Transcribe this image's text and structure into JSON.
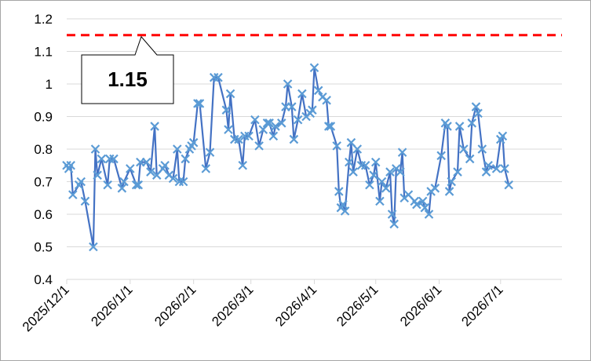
{
  "chart_data": {
    "type": "line",
    "title": "",
    "xlabel": "",
    "ylabel": "",
    "ylim": [
      0.4,
      1.2
    ],
    "yticks": [
      "0.4",
      "0.5",
      "0.6",
      "0.7",
      "0.8",
      "0.9",
      "1",
      "1.1",
      "1.2"
    ],
    "xlim": [
      "2025-12-01",
      "2026-07-31"
    ],
    "xticks": [
      "2025/12/1",
      "2026/1/1",
      "2026/2/1",
      "2026/3/1",
      "2026/4/1",
      "2026/5/1",
      "2026/6/1",
      "2026/7/1"
    ],
    "grid": "horizontal",
    "series": [
      {
        "color": "#4472c4",
        "marker": "x",
        "points": [
          [
            "2025-12-01",
            0.75
          ],
          [
            "2025-12-02",
            0.74
          ],
          [
            "2025-12-03",
            0.75
          ],
          [
            "2025-12-04",
            0.66
          ],
          [
            "2025-12-07",
            0.69
          ],
          [
            "2025-12-08",
            0.7
          ],
          [
            "2025-12-10",
            0.64
          ],
          [
            "2025-12-14",
            0.5
          ],
          [
            "2025-12-15",
            0.8
          ],
          [
            "2025-12-16",
            0.72
          ],
          [
            "2025-12-18",
            0.77
          ],
          [
            "2025-12-21",
            0.69
          ],
          [
            "2025-12-22",
            0.77
          ],
          [
            "2025-12-24",
            0.77
          ],
          [
            "2025-12-28",
            0.68
          ],
          [
            "2025-12-29",
            0.7
          ],
          [
            "2026-01-01",
            0.74
          ],
          [
            "2026-01-04",
            0.69
          ],
          [
            "2026-01-05",
            0.69
          ],
          [
            "2026-01-06",
            0.76
          ],
          [
            "2026-01-09",
            0.76
          ],
          [
            "2026-01-11",
            0.73
          ],
          [
            "2026-01-13",
            0.87
          ],
          [
            "2026-01-14",
            0.72
          ],
          [
            "2026-01-17",
            0.74
          ],
          [
            "2026-01-18",
            0.75
          ],
          [
            "2026-01-20",
            0.72
          ],
          [
            "2026-01-22",
            0.71
          ],
          [
            "2026-01-24",
            0.8
          ],
          [
            "2026-01-25",
            0.7
          ],
          [
            "2026-01-27",
            0.7
          ],
          [
            "2026-01-28",
            0.77
          ],
          [
            "2026-01-30",
            0.8
          ],
          [
            "2026-01-31",
            0.81
          ],
          [
            "2026-02-01",
            0.82
          ],
          [
            "2026-02-03",
            0.94
          ],
          [
            "2026-02-04",
            0.94
          ],
          [
            "2026-02-07",
            0.74
          ],
          [
            "2026-02-09",
            0.79
          ],
          [
            "2026-02-11",
            1.02
          ],
          [
            "2026-02-13",
            1.02
          ],
          [
            "2026-02-17",
            0.92
          ],
          [
            "2026-02-18",
            0.86
          ],
          [
            "2026-02-19",
            0.97
          ],
          [
            "2026-02-21",
            0.83
          ],
          [
            "2026-02-23",
            0.83
          ],
          [
            "2026-02-25",
            0.75
          ],
          [
            "2026-02-26",
            0.84
          ],
          [
            "2026-02-28",
            0.84
          ],
          [
            "2026-03-03",
            0.89
          ],
          [
            "2026-03-05",
            0.81
          ],
          [
            "2026-03-07",
            0.86
          ],
          [
            "2026-03-09",
            0.88
          ],
          [
            "2026-03-10",
            0.88
          ],
          [
            "2026-03-12",
            0.84
          ],
          [
            "2026-03-13",
            0.87
          ],
          [
            "2026-03-16",
            0.88
          ],
          [
            "2026-03-18",
            0.93
          ],
          [
            "2026-03-19",
            1.0
          ],
          [
            "2026-03-21",
            0.93
          ],
          [
            "2026-03-22",
            0.83
          ],
          [
            "2026-03-24",
            0.89
          ],
          [
            "2026-03-26",
            0.97
          ],
          [
            "2026-03-28",
            0.9
          ],
          [
            "2026-03-30",
            0.91
          ],
          [
            "2026-03-31",
            0.92
          ],
          [
            "2026-04-01",
            1.05
          ],
          [
            "2026-04-03",
            0.98
          ],
          [
            "2026-04-05",
            0.96
          ],
          [
            "2026-04-07",
            0.95
          ],
          [
            "2026-04-08",
            0.87
          ],
          [
            "2026-04-09",
            0.87
          ],
          [
            "2026-04-12",
            0.81
          ],
          [
            "2026-04-13",
            0.67
          ],
          [
            "2026-04-14",
            0.62
          ],
          [
            "2026-04-15",
            0.63
          ],
          [
            "2026-04-16",
            0.61
          ],
          [
            "2026-04-18",
            0.76
          ],
          [
            "2026-04-19",
            0.82
          ],
          [
            "2026-04-20",
            0.73
          ],
          [
            "2026-04-22",
            0.8
          ],
          [
            "2026-04-24",
            0.75
          ],
          [
            "2026-04-26",
            0.75
          ],
          [
            "2026-04-28",
            0.69
          ],
          [
            "2026-04-30",
            0.72
          ],
          [
            "2026-05-01",
            0.76
          ],
          [
            "2026-05-03",
            0.64
          ],
          [
            "2026-05-04",
            0.7
          ],
          [
            "2026-05-06",
            0.68
          ],
          [
            "2026-05-08",
            0.73
          ],
          [
            "2026-05-09",
            0.6
          ],
          [
            "2026-05-10",
            0.57
          ],
          [
            "2026-05-11",
            0.74
          ],
          [
            "2026-05-13",
            0.73
          ],
          [
            "2026-05-14",
            0.79
          ],
          [
            "2026-05-15",
            0.65
          ],
          [
            "2026-05-17",
            0.66
          ],
          [
            "2026-05-20",
            0.64
          ],
          [
            "2026-05-21",
            0.63
          ],
          [
            "2026-05-24",
            0.64
          ],
          [
            "2026-05-25",
            0.62
          ],
          [
            "2026-05-27",
            0.6
          ],
          [
            "2026-05-28",
            0.67
          ],
          [
            "2026-05-30",
            0.68
          ],
          [
            "2026-06-02",
            0.78
          ],
          [
            "2026-06-04",
            0.88
          ],
          [
            "2026-06-05",
            0.87
          ],
          [
            "2026-06-06",
            0.67
          ],
          [
            "2026-06-07",
            0.7
          ],
          [
            "2026-06-10",
            0.73
          ],
          [
            "2026-06-11",
            0.87
          ],
          [
            "2026-06-13",
            0.8
          ],
          [
            "2026-06-16",
            0.77
          ],
          [
            "2026-06-17",
            0.88
          ],
          [
            "2026-06-19",
            0.93
          ],
          [
            "2026-06-20",
            0.91
          ],
          [
            "2026-06-22",
            0.8
          ],
          [
            "2026-06-24",
            0.73
          ],
          [
            "2026-06-25",
            0.75
          ],
          [
            "2026-06-29",
            0.74
          ],
          [
            "2026-07-01",
            0.83
          ],
          [
            "2026-07-02",
            0.84
          ],
          [
            "2026-07-03",
            0.74
          ],
          [
            "2026-07-05",
            0.69
          ]
        ]
      }
    ],
    "reference_line": {
      "value": 1.15,
      "color": "#ff0000",
      "style": "dashed"
    },
    "annotation": {
      "text": "1.15"
    }
  }
}
